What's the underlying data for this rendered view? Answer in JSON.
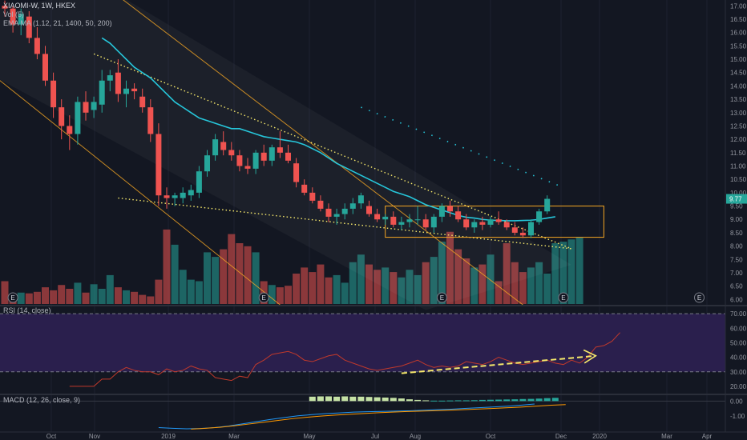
{
  "legend": {
    "main_title": "XIAOMI-W, 1W, HKEX",
    "vol_label": "Vol (5)",
    "ema_label": "EMA MA (1.12, 21, 1400, 50, 200)",
    "rsi_label": "RSI (14, close)",
    "macd_label": "MACD (12, 26, close, 9)"
  },
  "price_badge": "9.77",
  "event_marker_label": "E",
  "colors": {
    "background": "#131722",
    "up": "#26a69a",
    "down": "#ef5350",
    "ema": "#26c6da",
    "channel": "#f5a623",
    "trend": "#f7e96b",
    "rsi_band": "#2a1f4d",
    "rsi_line": "#c0392b",
    "macd_line": "#2196f3",
    "signal_line": "#ff9800",
    "arrow": "#f7e96b",
    "axis_text": "#9598a1"
  },
  "chart_data": [
    {
      "type": "candlestick",
      "title": "XIAOMI-W, 1W, HKEX",
      "x_ticks": [
        "Oct",
        "Nov",
        "2019",
        "Mar",
        "May",
        "Jul",
        "Aug",
        "Oct",
        "Dec",
        "2020",
        "Mar",
        "Apr"
      ],
      "y_ticks": [
        "17.00",
        "16.50",
        "16.00",
        "15.50",
        "15.00",
        "14.50",
        "14.00",
        "13.50",
        "13.00",
        "12.50",
        "12.00",
        "11.50",
        "11.00",
        "10.50",
        "10.00",
        "9.50",
        "9.00",
        "8.50",
        "8.00",
        "7.50",
        "7.00",
        "6.50",
        "6.00"
      ],
      "ylim": [
        5.8,
        17.1
      ],
      "last_price": 9.77,
      "candles": [
        {
          "o": 17.0,
          "h": 17.2,
          "l": 16.6,
          "c": 16.9
        },
        {
          "o": 16.9,
          "h": 17.0,
          "l": 16.0,
          "c": 16.3
        },
        {
          "o": 16.3,
          "h": 16.9,
          "l": 15.9,
          "c": 16.7
        },
        {
          "o": 16.6,
          "h": 16.8,
          "l": 15.6,
          "c": 15.8
        },
        {
          "o": 15.8,
          "h": 16.2,
          "l": 15.0,
          "c": 15.2
        },
        {
          "o": 15.2,
          "h": 15.5,
          "l": 14.0,
          "c": 14.2
        },
        {
          "o": 14.2,
          "h": 14.5,
          "l": 12.8,
          "c": 13.2
        },
        {
          "o": 13.2,
          "h": 13.5,
          "l": 12.0,
          "c": 12.5
        },
        {
          "o": 12.5,
          "h": 12.9,
          "l": 11.6,
          "c": 12.2
        },
        {
          "o": 12.2,
          "h": 13.6,
          "l": 11.8,
          "c": 13.4
        },
        {
          "o": 13.4,
          "h": 13.8,
          "l": 12.7,
          "c": 13.0
        },
        {
          "o": 13.1,
          "h": 13.6,
          "l": 12.8,
          "c": 13.4
        },
        {
          "o": 13.3,
          "h": 14.6,
          "l": 13.0,
          "c": 14.2
        },
        {
          "o": 14.2,
          "h": 14.6,
          "l": 13.8,
          "c": 14.4
        },
        {
          "o": 14.5,
          "h": 15.0,
          "l": 13.4,
          "c": 13.7
        },
        {
          "o": 13.7,
          "h": 14.2,
          "l": 13.2,
          "c": 13.9
        },
        {
          "o": 13.9,
          "h": 14.1,
          "l": 13.5,
          "c": 13.8
        },
        {
          "o": 13.6,
          "h": 13.9,
          "l": 13.0,
          "c": 13.2
        },
        {
          "o": 13.2,
          "h": 13.5,
          "l": 11.9,
          "c": 12.2
        },
        {
          "o": 12.2,
          "h": 12.6,
          "l": 9.5,
          "c": 9.9
        },
        {
          "o": 9.9,
          "h": 10.2,
          "l": 9.4,
          "c": 9.8
        },
        {
          "o": 9.8,
          "h": 10.0,
          "l": 9.5,
          "c": 9.9
        },
        {
          "o": 9.8,
          "h": 10.2,
          "l": 9.6,
          "c": 10.0
        },
        {
          "o": 9.9,
          "h": 10.3,
          "l": 9.7,
          "c": 10.1
        },
        {
          "o": 10.0,
          "h": 11.0,
          "l": 9.8,
          "c": 10.8
        },
        {
          "o": 10.8,
          "h": 11.6,
          "l": 10.6,
          "c": 11.4
        },
        {
          "o": 11.4,
          "h": 12.2,
          "l": 11.2,
          "c": 12.0
        },
        {
          "o": 11.9,
          "h": 12.3,
          "l": 11.4,
          "c": 11.6
        },
        {
          "o": 11.6,
          "h": 11.9,
          "l": 11.2,
          "c": 11.4
        },
        {
          "o": 11.4,
          "h": 11.6,
          "l": 10.8,
          "c": 11.0
        },
        {
          "o": 11.0,
          "h": 11.3,
          "l": 10.7,
          "c": 10.9
        },
        {
          "o": 10.9,
          "h": 11.6,
          "l": 10.7,
          "c": 11.5
        },
        {
          "o": 11.5,
          "h": 11.8,
          "l": 11.0,
          "c": 11.2
        },
        {
          "o": 11.2,
          "h": 11.8,
          "l": 11.0,
          "c": 11.7
        },
        {
          "o": 11.7,
          "h": 12.3,
          "l": 11.3,
          "c": 11.5
        },
        {
          "o": 11.5,
          "h": 11.8,
          "l": 11.1,
          "c": 11.2
        },
        {
          "o": 11.1,
          "h": 11.3,
          "l": 10.2,
          "c": 10.4
        },
        {
          "o": 10.3,
          "h": 10.5,
          "l": 9.9,
          "c": 10.0
        },
        {
          "o": 10.0,
          "h": 10.2,
          "l": 9.6,
          "c": 9.7
        },
        {
          "o": 9.7,
          "h": 9.9,
          "l": 9.3,
          "c": 9.4
        },
        {
          "o": 9.4,
          "h": 9.6,
          "l": 8.9,
          "c": 9.1
        },
        {
          "o": 9.1,
          "h": 9.4,
          "l": 8.8,
          "c": 9.2
        },
        {
          "o": 9.2,
          "h": 9.6,
          "l": 9.0,
          "c": 9.4
        },
        {
          "o": 9.4,
          "h": 9.8,
          "l": 9.2,
          "c": 9.6
        },
        {
          "o": 9.6,
          "h": 10.0,
          "l": 9.4,
          "c": 9.9
        },
        {
          "o": 9.5,
          "h": 9.7,
          "l": 9.1,
          "c": 9.2
        },
        {
          "o": 9.2,
          "h": 9.4,
          "l": 8.9,
          "c": 9.0
        },
        {
          "o": 9.0,
          "h": 9.2,
          "l": 8.8,
          "c": 9.1
        },
        {
          "o": 9.1,
          "h": 9.3,
          "l": 8.7,
          "c": 8.8
        },
        {
          "o": 8.8,
          "h": 9.1,
          "l": 8.6,
          "c": 8.9
        },
        {
          "o": 8.9,
          "h": 9.2,
          "l": 8.7,
          "c": 9.0
        },
        {
          "o": 9.0,
          "h": 9.5,
          "l": 8.8,
          "c": 9.0
        },
        {
          "o": 9.0,
          "h": 9.2,
          "l": 8.6,
          "c": 8.7
        },
        {
          "o": 8.7,
          "h": 9.2,
          "l": 8.5,
          "c": 9.1
        },
        {
          "o": 9.1,
          "h": 9.6,
          "l": 8.9,
          "c": 9.5
        },
        {
          "o": 9.5,
          "h": 9.7,
          "l": 9.1,
          "c": 9.3
        },
        {
          "o": 9.3,
          "h": 9.5,
          "l": 8.9,
          "c": 9.0
        },
        {
          "o": 9.0,
          "h": 9.2,
          "l": 8.6,
          "c": 8.7
        },
        {
          "o": 8.7,
          "h": 9.0,
          "l": 8.5,
          "c": 8.9
        },
        {
          "o": 8.9,
          "h": 9.1,
          "l": 8.6,
          "c": 8.8
        },
        {
          "o": 8.8,
          "h": 9.1,
          "l": 8.7,
          "c": 9.0
        },
        {
          "o": 9.0,
          "h": 9.3,
          "l": 8.8,
          "c": 8.9
        },
        {
          "o": 8.9,
          "h": 9.0,
          "l": 8.6,
          "c": 8.7
        },
        {
          "o": 8.7,
          "h": 8.9,
          "l": 8.4,
          "c": 8.5
        },
        {
          "o": 8.5,
          "h": 8.7,
          "l": 8.3,
          "c": 8.4
        },
        {
          "o": 8.4,
          "h": 9.0,
          "l": 8.3,
          "c": 8.9
        },
        {
          "o": 8.9,
          "h": 9.4,
          "l": 8.8,
          "c": 9.3
        },
        {
          "o": 9.3,
          "h": 9.9,
          "l": 9.2,
          "c": 9.77
        }
      ],
      "ema": [
        15.8,
        15.6,
        15.3,
        15.0,
        14.7,
        14.5,
        14.3,
        14.0,
        13.7,
        13.4,
        13.2,
        13.0,
        12.8,
        12.7,
        12.6,
        12.5,
        12.4,
        12.4,
        12.3,
        12.2,
        12.1,
        12.05,
        12.0,
        11.95,
        11.9,
        11.8,
        11.65,
        11.5,
        11.3,
        11.1,
        10.95,
        10.8,
        10.65,
        10.5,
        10.35,
        10.2,
        10.05,
        9.95,
        9.85,
        9.7,
        9.55,
        9.45,
        9.35,
        9.25,
        9.15,
        9.08,
        9.05,
        9.0,
        8.97,
        8.96,
        8.95,
        8.95,
        8.96,
        8.97,
        9.0,
        9.05,
        9.1
      ],
      "ema_start_index": 12,
      "volume": [
        0.3,
        0.12,
        0.15,
        0.14,
        0.16,
        0.22,
        0.18,
        0.25,
        0.2,
        0.28,
        0.15,
        0.26,
        0.2,
        0.38,
        0.22,
        0.18,
        0.16,
        0.12,
        0.1,
        0.32,
        0.98,
        0.78,
        0.45,
        0.32,
        0.3,
        0.68,
        0.62,
        0.72,
        0.92,
        0.8,
        0.76,
        0.68,
        0.3,
        0.25,
        0.22,
        0.24,
        0.4,
        0.48,
        0.42,
        0.52,
        0.35,
        0.38,
        0.28,
        0.55,
        0.65,
        0.52,
        0.45,
        0.48,
        0.42,
        0.35,
        0.45,
        0.38,
        0.55,
        0.62,
        0.82,
        0.95,
        0.72,
        0.6,
        0.48,
        0.52,
        0.65,
        0.3,
        0.8,
        0.55,
        0.42,
        0.48,
        0.55,
        0.4,
        0.8,
        0.82,
        0.85,
        0.88
      ]
    },
    {
      "type": "line",
      "title": "RSI (14, close)",
      "y_ticks": [
        "70.00",
        "60.00",
        "50.00",
        "40.00",
        "30.00",
        "20.00"
      ],
      "ylim": [
        15,
        75
      ],
      "band": [
        30,
        70
      ],
      "values": [
        20,
        20,
        20,
        20,
        25,
        25,
        30,
        33,
        31,
        30,
        30,
        28,
        32,
        30,
        31,
        34,
        32,
        31,
        26,
        25,
        24,
        27,
        26,
        35,
        38,
        42,
        43,
        44,
        42,
        38,
        37,
        39,
        41,
        42,
        38,
        36,
        34,
        32,
        31,
        32,
        33,
        34,
        36,
        38,
        35,
        33,
        34,
        33,
        34,
        37,
        36,
        35,
        37,
        40,
        38,
        36,
        35,
        36,
        37,
        38,
        36,
        35,
        38,
        36,
        40,
        47,
        48,
        51,
        57
      ],
      "values_start_index": 2
    },
    {
      "type": "bar",
      "title": "MACD (12, 26, close, 9)",
      "y_ticks": [
        "0.00",
        "-1.00"
      ],
      "ylim": [
        -2.1,
        0.4
      ],
      "histogram": [
        0.3,
        0.32,
        0.32,
        0.3,
        0.32,
        0.3,
        0.3,
        0.28,
        0.26,
        0.24,
        0.22,
        0.18,
        0.12,
        0.08,
        0.05,
        0.03,
        0.03,
        0.04,
        0.05,
        0.05,
        0.06,
        0.08,
        0.09,
        0.1,
        0.11,
        0.12,
        0.14,
        0.15,
        0.17,
        0.2,
        0.22
      ],
      "histogram_start_index": 38,
      "macd": [
        -1.8,
        -1.85,
        -1.88,
        -1.86,
        -1.8,
        -1.7,
        -1.55,
        -1.4,
        -1.25,
        -1.12,
        -1.0,
        -0.92,
        -0.85,
        -0.8,
        -0.75,
        -0.72,
        -0.7,
        -0.68,
        -0.66,
        -0.62,
        -0.58,
        -0.55,
        -0.5,
        -0.45,
        -0.4,
        -0.35,
        -0.28,
        -0.2
      ],
      "macd_start_index": 27,
      "signal": [
        -1.9,
        -1.85,
        -1.78,
        -1.68,
        -1.56,
        -1.44,
        -1.32,
        -1.2,
        -1.1,
        -1.02,
        -0.95,
        -0.9,
        -0.84,
        -0.79,
        -0.75,
        -0.71,
        -0.68,
        -0.65,
        -0.62,
        -0.58,
        -0.54,
        -0.5,
        -0.45,
        -0.4,
        -0.34,
        -0.28,
        -0.24
      ],
      "signal_start_index": 31
    }
  ]
}
